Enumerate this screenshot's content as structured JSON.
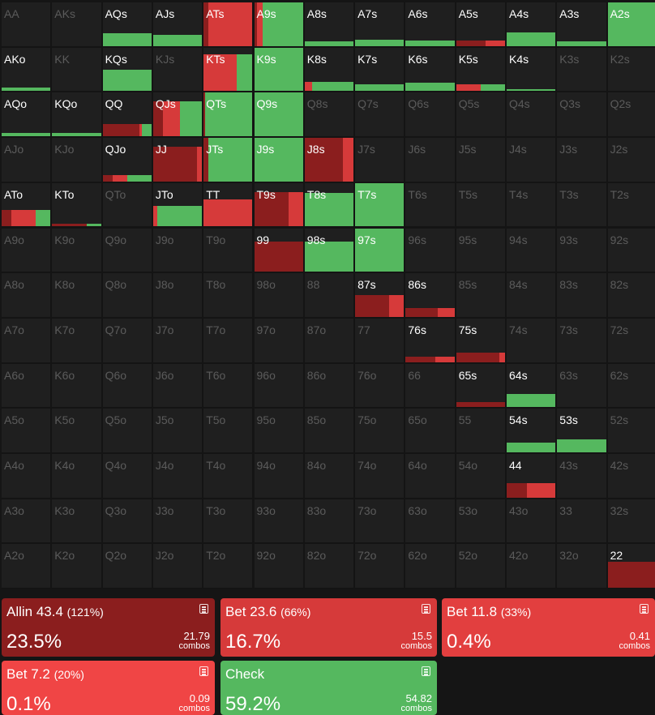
{
  "colors": {
    "allin": "#8b1e1e",
    "bet_big": "#d63a3a",
    "bet_mid": "#e23f3f",
    "bet_small": "#f04545",
    "check": "#55b85f",
    "empty_cell": "#1f1f1f"
  },
  "grid": {
    "rows": [
      [
        "AA",
        "AKs",
        "AQs",
        "AJs",
        "ATs",
        "A9s",
        "A8s",
        "A7s",
        "A6s",
        "A5s",
        "A4s",
        "A3s",
        "A2s"
      ],
      [
        "AKo",
        "KK",
        "KQs",
        "KJs",
        "KTs",
        "K9s",
        "K8s",
        "K7s",
        "K6s",
        "K5s",
        "K4s",
        "K3s",
        "K2s"
      ],
      [
        "AQo",
        "KQo",
        "QQ",
        "QJs",
        "QTs",
        "Q9s",
        "Q8s",
        "Q7s",
        "Q6s",
        "Q5s",
        "Q4s",
        "Q3s",
        "Q2s"
      ],
      [
        "AJo",
        "KJo",
        "QJo",
        "JJ",
        "JTs",
        "J9s",
        "J8s",
        "J7s",
        "J6s",
        "J5s",
        "J4s",
        "J3s",
        "J2s"
      ],
      [
        "ATo",
        "KTo",
        "QTo",
        "JTo",
        "TT",
        "T9s",
        "T8s",
        "T7s",
        "T6s",
        "T5s",
        "T4s",
        "T3s",
        "T2s"
      ],
      [
        "A9o",
        "K9o",
        "Q9o",
        "J9o",
        "T9o",
        "99",
        "98s",
        "97s",
        "96s",
        "95s",
        "94s",
        "93s",
        "92s"
      ],
      [
        "A8o",
        "K8o",
        "Q8o",
        "J8o",
        "T8o",
        "98o",
        "88",
        "87s",
        "86s",
        "85s",
        "84s",
        "83s",
        "82s"
      ],
      [
        "A7o",
        "K7o",
        "Q7o",
        "J7o",
        "T7o",
        "97o",
        "87o",
        "77",
        "76s",
        "75s",
        "74s",
        "73s",
        "72s"
      ],
      [
        "A6o",
        "K6o",
        "Q6o",
        "J6o",
        "T6o",
        "96o",
        "86o",
        "76o",
        "66",
        "65s",
        "64s",
        "63s",
        "62s"
      ],
      [
        "A5o",
        "K5o",
        "Q5o",
        "J5o",
        "T5o",
        "95o",
        "85o",
        "75o",
        "65o",
        "55",
        "54s",
        "53s",
        "52s"
      ],
      [
        "A4o",
        "K4o",
        "Q4o",
        "J4o",
        "T4o",
        "94o",
        "84o",
        "74o",
        "64o",
        "54o",
        "44",
        "43s",
        "42s"
      ],
      [
        "A3o",
        "K3o",
        "Q3o",
        "J3o",
        "T3o",
        "93o",
        "83o",
        "73o",
        "63o",
        "53o",
        "43o",
        "33",
        "32s"
      ],
      [
        "A2o",
        "K2o",
        "Q2o",
        "J2o",
        "T2o",
        "92o",
        "82o",
        "72o",
        "62o",
        "52o",
        "42o",
        "32o",
        "22"
      ]
    ],
    "hands": {
      "AQs": {
        "freq": 0.3,
        "mix": [
          {
            "a": "check",
            "w": 1.0
          }
        ]
      },
      "AJs": {
        "freq": 0.25,
        "mix": [
          {
            "a": "check",
            "w": 1.0
          }
        ]
      },
      "ATs": {
        "freq": 1.0,
        "mix": [
          {
            "a": "allin",
            "w": 0.1
          },
          {
            "a": "bet_big",
            "w": 0.9
          }
        ]
      },
      "A9s": {
        "freq": 1.0,
        "mix": [
          {
            "a": "allin",
            "w": 0.05
          },
          {
            "a": "bet_big",
            "w": 0.12
          },
          {
            "a": "check",
            "w": 0.83
          }
        ]
      },
      "A8s": {
        "freq": 0.1,
        "mix": [
          {
            "a": "check",
            "w": 1.0
          }
        ]
      },
      "A7s": {
        "freq": 0.15,
        "mix": [
          {
            "a": "check",
            "w": 1.0
          }
        ]
      },
      "A6s": {
        "freq": 0.12,
        "mix": [
          {
            "a": "check",
            "w": 1.0
          }
        ]
      },
      "A5s": {
        "freq": 0.12,
        "mix": [
          {
            "a": "allin",
            "w": 0.6
          },
          {
            "a": "bet_big",
            "w": 0.4
          }
        ]
      },
      "A4s": {
        "freq": 0.32,
        "mix": [
          {
            "a": "check",
            "w": 1.0
          }
        ]
      },
      "A3s": {
        "freq": 0.1,
        "mix": [
          {
            "a": "check",
            "w": 1.0
          }
        ]
      },
      "A2s": {
        "freq": 1.0,
        "mix": [
          {
            "a": "check",
            "w": 1.0
          }
        ]
      },
      "AKo": {
        "freq": 0.08,
        "mix": [
          {
            "a": "check",
            "w": 1.0
          }
        ]
      },
      "KQs": {
        "freq": 0.5,
        "mix": [
          {
            "a": "check",
            "w": 1.0
          }
        ]
      },
      "KTs": {
        "freq": 0.85,
        "mix": [
          {
            "a": "bet_big",
            "w": 0.68
          },
          {
            "a": "check",
            "w": 0.32
          }
        ]
      },
      "K9s": {
        "freq": 1.0,
        "mix": [
          {
            "a": "check",
            "w": 1.0
          }
        ]
      },
      "K8s": {
        "freq": 0.22,
        "mix": [
          {
            "a": "bet_big",
            "w": 0.15
          },
          {
            "a": "check",
            "w": 0.85
          }
        ]
      },
      "K7s": {
        "freq": 0.15,
        "mix": [
          {
            "a": "check",
            "w": 1.0
          }
        ]
      },
      "K6s": {
        "freq": 0.2,
        "mix": [
          {
            "a": "check",
            "w": 1.0
          }
        ]
      },
      "K5s": {
        "freq": 0.15,
        "mix": [
          {
            "a": "bet_big",
            "w": 0.5
          },
          {
            "a": "check",
            "w": 0.5
          }
        ]
      },
      "K4s": {
        "freq": 0.05,
        "mix": [
          {
            "a": "check",
            "w": 1.0
          }
        ]
      },
      "AQo": {
        "freq": 0.08,
        "mix": [
          {
            "a": "check",
            "w": 1.0
          }
        ]
      },
      "KQo": {
        "freq": 0.08,
        "mix": [
          {
            "a": "check",
            "w": 1.0
          }
        ]
      },
      "QQ": {
        "freq": 0.28,
        "mix": [
          {
            "a": "allin",
            "w": 0.75
          },
          {
            "a": "bet_big",
            "w": 0.05
          },
          {
            "a": "check",
            "w": 0.2
          }
        ]
      },
      "QJs": {
        "freq": 0.8,
        "mix": [
          {
            "a": "allin",
            "w": 0.2
          },
          {
            "a": "bet_big",
            "w": 0.35
          },
          {
            "a": "check",
            "w": 0.45
          }
        ]
      },
      "QTs": {
        "freq": 1.0,
        "mix": [
          {
            "a": "allin",
            "w": 0.03
          },
          {
            "a": "check",
            "w": 0.97
          }
        ]
      },
      "Q9s": {
        "freq": 1.0,
        "mix": [
          {
            "a": "check",
            "w": 1.0
          }
        ]
      },
      "QJo": {
        "freq": 0.14,
        "mix": [
          {
            "a": "allin",
            "w": 0.2
          },
          {
            "a": "bet_big",
            "w": 0.3
          },
          {
            "a": "check",
            "w": 0.5
          }
        ]
      },
      "JJ": {
        "freq": 0.8,
        "mix": [
          {
            "a": "allin",
            "w": 0.9
          },
          {
            "a": "bet_big",
            "w": 0.1
          }
        ]
      },
      "JTs": {
        "freq": 1.0,
        "mix": [
          {
            "a": "allin",
            "w": 0.1
          },
          {
            "a": "check",
            "w": 0.9
          }
        ]
      },
      "J9s": {
        "freq": 1.0,
        "mix": [
          {
            "a": "check",
            "w": 1.0
          }
        ]
      },
      "J8s": {
        "freq": 1.0,
        "mix": [
          {
            "a": "allin",
            "w": 0.78
          },
          {
            "a": "bet_big",
            "w": 0.22
          }
        ]
      },
      "ATo": {
        "freq": 0.38,
        "mix": [
          {
            "a": "allin",
            "w": 0.2
          },
          {
            "a": "bet_big",
            "w": 0.5
          },
          {
            "a": "check",
            "w": 0.3
          }
        ]
      },
      "KTo": {
        "freq": 0.06,
        "mix": [
          {
            "a": "allin",
            "w": 0.7
          },
          {
            "a": "check",
            "w": 0.3
          }
        ]
      },
      "JTo": {
        "freq": 0.48,
        "mix": [
          {
            "a": "bet_big",
            "w": 0.08
          },
          {
            "a": "check",
            "w": 0.92
          }
        ]
      },
      "TT": {
        "freq": 0.62,
        "mix": [
          {
            "a": "bet_big",
            "w": 1.0
          }
        ]
      },
      "T9s": {
        "freq": 0.8,
        "mix": [
          {
            "a": "allin",
            "w": 0.7
          },
          {
            "a": "bet_big",
            "w": 0.3
          }
        ]
      },
      "T8s": {
        "freq": 0.78,
        "mix": [
          {
            "a": "check",
            "w": 1.0
          }
        ]
      },
      "T7s": {
        "freq": 1.0,
        "mix": [
          {
            "a": "check",
            "w": 1.0
          }
        ]
      },
      "99": {
        "freq": 0.7,
        "mix": [
          {
            "a": "allin",
            "w": 1.0
          }
        ]
      },
      "98s": {
        "freq": 0.7,
        "mix": [
          {
            "a": "check",
            "w": 1.0
          }
        ]
      },
      "97s": {
        "freq": 1.0,
        "mix": [
          {
            "a": "check",
            "w": 1.0
          }
        ]
      },
      "87s": {
        "freq": 0.5,
        "mix": [
          {
            "a": "allin",
            "w": 0.7
          },
          {
            "a": "bet_big",
            "w": 0.3
          }
        ]
      },
      "86s": {
        "freq": 0.2,
        "mix": [
          {
            "a": "allin",
            "w": 0.65
          },
          {
            "a": "bet_big",
            "w": 0.35
          }
        ]
      },
      "76s": {
        "freq": 0.12,
        "mix": [
          {
            "a": "allin",
            "w": 0.6
          },
          {
            "a": "bet_big",
            "w": 0.4
          }
        ]
      },
      "75s": {
        "freq": 0.22,
        "mix": [
          {
            "a": "allin",
            "w": 0.88
          },
          {
            "a": "bet_big",
            "w": 0.12
          }
        ]
      },
      "65s": {
        "freq": 0.12,
        "mix": [
          {
            "a": "allin",
            "w": 1.0
          }
        ]
      },
      "64s": {
        "freq": 0.3,
        "mix": [
          {
            "a": "check",
            "w": 1.0
          }
        ]
      },
      "54s": {
        "freq": 0.22,
        "mix": [
          {
            "a": "check",
            "w": 1.0
          }
        ]
      },
      "53s": {
        "freq": 0.3,
        "mix": [
          {
            "a": "check",
            "w": 1.0
          }
        ]
      },
      "44": {
        "freq": 0.33,
        "mix": [
          {
            "a": "allin",
            "w": 0.42
          },
          {
            "a": "bet_big",
            "w": 0.58
          }
        ]
      },
      "22": {
        "freq": 0.6,
        "mix": [
          {
            "a": "allin",
            "w": 1.0
          }
        ]
      }
    }
  },
  "actions": [
    {
      "key": "allin",
      "name": "Allin 43.4",
      "pct": "(121%)",
      "freq": "23.5%",
      "combos": "21.79",
      "unit": "combos",
      "color": "#8b1e1e"
    },
    {
      "key": "bet_big",
      "name": "Bet 23.6",
      "pct": "(66%)",
      "freq": "16.7%",
      "combos": "15.5",
      "unit": "combos",
      "color": "#d63a3a"
    },
    {
      "key": "bet_mid",
      "name": "Bet 11.8",
      "pct": "(33%)",
      "freq": "0.4%",
      "combos": "0.41",
      "unit": "combos",
      "color": "#e23f3f"
    },
    {
      "key": "bet_small",
      "name": "Bet 7.2",
      "pct": "(20%)",
      "freq": "0.1%",
      "combos": "0.09",
      "unit": "combos",
      "color": "#f04545"
    },
    {
      "key": "check",
      "name": "Check",
      "pct": "",
      "freq": "59.2%",
      "combos": "54.82",
      "unit": "combos",
      "color": "#55b85f"
    }
  ]
}
